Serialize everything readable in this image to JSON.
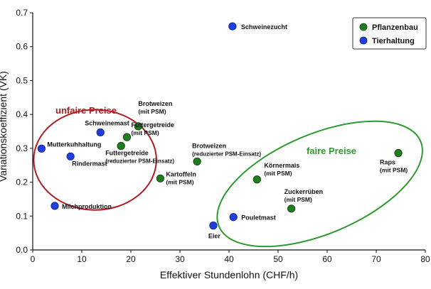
{
  "chart_data": {
    "type": "scatter",
    "title": "",
    "xlabel": "Effektiver Stundenlohn (CHF/h)",
    "ylabel": "Variationskoeffizient (VK)",
    "xlim": [
      0,
      80
    ],
    "ylim": [
      0,
      0.7
    ],
    "x_ticks": [
      "0",
      "10",
      "20",
      "30",
      "40",
      "50",
      "60",
      "70",
      "80"
    ],
    "y_ticks": [
      "0.0",
      "0.1",
      "0.2",
      "0.3",
      "0.4",
      "0.5",
      "0.6",
      "0.7"
    ],
    "grid": false,
    "legend_position": "top-right",
    "colors": {
      "Pflanzenbau": "#1e7d1e",
      "Tierhaltung": "#1f3fe0",
      "unfair_ellipse": "#b01c22",
      "fair_ellipse": "#2e9a2e"
    },
    "series": [
      {
        "name": "Pflanzenbau",
        "points": [
          {
            "x": 21.5,
            "y": 0.365,
            "label": "Brotweizen\n(mit PSM)"
          },
          {
            "x": 19.2,
            "y": 0.333,
            "label": "Futtergetreide\n(mit PSM)"
          },
          {
            "x": 18.0,
            "y": 0.307,
            "label": "Futtergetreide\n(reduzierter PSM-Einsatz)"
          },
          {
            "x": 33.5,
            "y": 0.261,
            "label": "Brotweizen\n(reduzierter PSM-Einsatz)"
          },
          {
            "x": 26.0,
            "y": 0.211,
            "label": "Kartoffeln\n(mit PSM)"
          },
          {
            "x": 45.7,
            "y": 0.208,
            "label": "Körnermais\n(mit PSM)"
          },
          {
            "x": 52.7,
            "y": 0.122,
            "label": "Zuckerrüben\n(mit PSM)"
          },
          {
            "x": 74.5,
            "y": 0.286,
            "label": "Raps\n(mit PSM)"
          }
        ]
      },
      {
        "name": "Tierhaltung",
        "points": [
          {
            "x": 40.7,
            "y": 0.66,
            "label": "Schweinezucht"
          },
          {
            "x": 13.8,
            "y": 0.347,
            "label": "Schweinemast"
          },
          {
            "x": 1.8,
            "y": 0.299,
            "label": "Mutterkuhhaltung"
          },
          {
            "x": 7.7,
            "y": 0.276,
            "label": "Rindermast"
          },
          {
            "x": 4.5,
            "y": 0.13,
            "label": "Milchproduktion"
          },
          {
            "x": 40.9,
            "y": 0.097,
            "label": "Pouletmast"
          },
          {
            "x": 36.8,
            "y": 0.072,
            "label": "Eier"
          }
        ]
      }
    ],
    "annotations": [
      {
        "text": "unfaire Preise",
        "kind": "ellipse",
        "cx": 12.7,
        "cy": 0.266,
        "rx": 12.5,
        "ry": 0.148,
        "color_key": "unfair_ellipse"
      },
      {
        "text": "faire Preise",
        "kind": "ellipse",
        "cx": 58.5,
        "cy": 0.195,
        "rx": 22.3,
        "ry": 0.147,
        "rotate": -23,
        "color_key": "fair_ellipse"
      }
    ]
  }
}
